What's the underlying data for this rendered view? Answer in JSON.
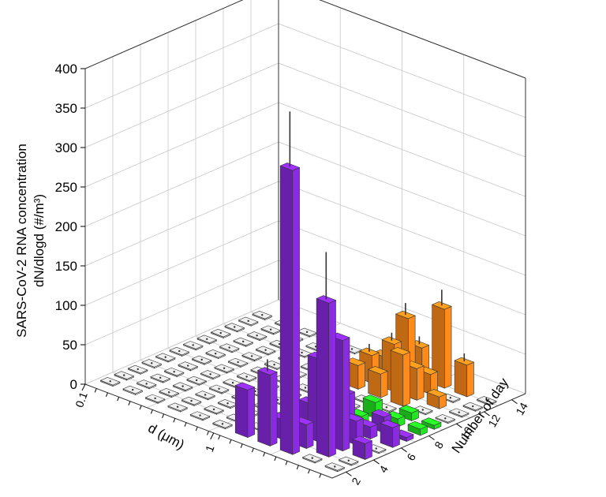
{
  "chart_data": {
    "type": "bar3d",
    "title": "",
    "z_axis": {
      "label_line1": "SARS-CoV-2 RNA concentration",
      "label_line2": "dN/dlogd (#/m³)",
      "range": [
        0,
        400
      ],
      "ticks": [
        "0",
        "50",
        "100",
        "150",
        "200",
        "250",
        "300",
        "350",
        "400"
      ]
    },
    "d_axis": {
      "label": "d (μm)",
      "tick_labels": [
        "0.1",
        "1"
      ],
      "scale": "log"
    },
    "day_axis": {
      "label": "Number of day",
      "ticks": [
        "2",
        "4",
        "6",
        "8",
        "10",
        "12",
        "14"
      ]
    },
    "colors": {
      "purple": "#8a2be2",
      "green": "#22e622",
      "orange": "#ff8c1a",
      "gray": "#d8d8d8"
    },
    "bars": [
      {
        "day": 2,
        "d_bin": 0,
        "value": 0,
        "color": "gray"
      },
      {
        "day": 2,
        "d_bin": 1,
        "value": 0,
        "color": "gray"
      },
      {
        "day": 2,
        "d_bin": 2,
        "value": 0,
        "color": "gray"
      },
      {
        "day": 2,
        "d_bin": 3,
        "value": 0,
        "color": "gray"
      },
      {
        "day": 2,
        "d_bin": 4,
        "value": 0,
        "color": "gray"
      },
      {
        "day": 2,
        "d_bin": 5,
        "value": 0,
        "color": "gray"
      },
      {
        "day": 2,
        "d_bin": 6,
        "value": 60,
        "err": 0,
        "color": "purple"
      },
      {
        "day": 2,
        "d_bin": 7,
        "value": 90,
        "err": 15,
        "color": "purple"
      },
      {
        "day": 2,
        "d_bin": 8,
        "value": 360,
        "err": 70,
        "color": "purple"
      },
      {
        "day": 2,
        "d_bin": 9,
        "value": 0,
        "color": "gray"
      },
      {
        "day": 2,
        "d_bin": 10,
        "value": 0,
        "color": "gray"
      },
      {
        "day": 3,
        "d_bin": 0,
        "value": 0,
        "color": "gray"
      },
      {
        "day": 3,
        "d_bin": 1,
        "value": 0,
        "color": "gray"
      },
      {
        "day": 3,
        "d_bin": 2,
        "value": 0,
        "color": "gray"
      },
      {
        "day": 3,
        "d_bin": 3,
        "value": 0,
        "color": "gray"
      },
      {
        "day": 3,
        "d_bin": 4,
        "value": 0,
        "color": "gray"
      },
      {
        "day": 3,
        "d_bin": 5,
        "value": 0,
        "color": "gray"
      },
      {
        "day": 3,
        "d_bin": 6,
        "value": 0,
        "color": "gray"
      },
      {
        "day": 3,
        "d_bin": 7,
        "value": 25,
        "color": "purple"
      },
      {
        "day": 3,
        "d_bin": 8,
        "value": 30,
        "color": "purple"
      },
      {
        "day": 3,
        "d_bin": 9,
        "value": 195,
        "err": 60,
        "color": "purple"
      },
      {
        "day": 3,
        "d_bin": 10,
        "value": 0,
        "color": "gray"
      },
      {
        "day": 4,
        "d_bin": 0,
        "value": 0,
        "color": "gray"
      },
      {
        "day": 4,
        "d_bin": 1,
        "value": 0,
        "color": "gray"
      },
      {
        "day": 4,
        "d_bin": 2,
        "value": 0,
        "color": "gray"
      },
      {
        "day": 4,
        "d_bin": 3,
        "value": 0,
        "color": "gray"
      },
      {
        "day": 4,
        "d_bin": 4,
        "value": 0,
        "color": "gray"
      },
      {
        "day": 4,
        "d_bin": 5,
        "value": 0,
        "color": "gray"
      },
      {
        "day": 4,
        "d_bin": 6,
        "value": 0,
        "color": "gray"
      },
      {
        "day": 4,
        "d_bin": 7,
        "value": 0,
        "color": "gray"
      },
      {
        "day": 4,
        "d_bin": 8,
        "value": 105,
        "err": 30,
        "color": "purple"
      },
      {
        "day": 4,
        "d_bin": 9,
        "value": 140,
        "color": "purple"
      },
      {
        "day": 4,
        "d_bin": 10,
        "value": 20,
        "color": "purple"
      },
      {
        "day": 5,
        "d_bin": 0,
        "value": 0,
        "color": "gray"
      },
      {
        "day": 5,
        "d_bin": 1,
        "value": 0,
        "color": "gray"
      },
      {
        "day": 5,
        "d_bin": 2,
        "value": 0,
        "color": "gray"
      },
      {
        "day": 5,
        "d_bin": 3,
        "value": 0,
        "color": "gray"
      },
      {
        "day": 5,
        "d_bin": 4,
        "value": 0,
        "color": "gray"
      },
      {
        "day": 5,
        "d_bin": 5,
        "value": 0,
        "color": "gray"
      },
      {
        "day": 5,
        "d_bin": 6,
        "value": 0,
        "color": "gray"
      },
      {
        "day": 5,
        "d_bin": 7,
        "value": 30,
        "color": "purple"
      },
      {
        "day": 5,
        "d_bin": 8,
        "value": 55,
        "color": "purple"
      },
      {
        "day": 5,
        "d_bin": 9,
        "value": 30,
        "color": "purple"
      },
      {
        "day": 5,
        "d_bin": 10,
        "value": 0,
        "color": "gray"
      },
      {
        "day": 6,
        "d_bin": 0,
        "value": 0,
        "color": "gray"
      },
      {
        "day": 6,
        "d_bin": 1,
        "value": 0,
        "color": "gray"
      },
      {
        "day": 6,
        "d_bin": 2,
        "value": 0,
        "color": "gray"
      },
      {
        "day": 6,
        "d_bin": 3,
        "value": 0,
        "color": "gray"
      },
      {
        "day": 6,
        "d_bin": 4,
        "value": 0,
        "color": "gray"
      },
      {
        "day": 6,
        "d_bin": 5,
        "value": 0,
        "color": "gray"
      },
      {
        "day": 6,
        "d_bin": 6,
        "value": 0,
        "color": "gray"
      },
      {
        "day": 6,
        "d_bin": 7,
        "value": 35,
        "err": 20,
        "color": "green"
      },
      {
        "day": 6,
        "d_bin": 8,
        "value": 45,
        "color": "purple"
      },
      {
        "day": 6,
        "d_bin": 9,
        "value": 15,
        "color": "purple"
      },
      {
        "day": 6,
        "d_bin": 10,
        "value": 25,
        "color": "purple"
      },
      {
        "day": 7,
        "d_bin": 0,
        "value": 0,
        "color": "gray"
      },
      {
        "day": 7,
        "d_bin": 1,
        "value": 0,
        "color": "gray"
      },
      {
        "day": 7,
        "d_bin": 2,
        "value": 0,
        "color": "gray"
      },
      {
        "day": 7,
        "d_bin": 3,
        "value": 0,
        "color": "gray"
      },
      {
        "day": 7,
        "d_bin": 4,
        "value": 0,
        "color": "gray"
      },
      {
        "day": 7,
        "d_bin": 5,
        "value": 0,
        "color": "gray"
      },
      {
        "day": 7,
        "d_bin": 6,
        "value": 0,
        "color": "gray"
      },
      {
        "day": 7,
        "d_bin": 7,
        "value": 30,
        "color": "green"
      },
      {
        "day": 7,
        "d_bin": 8,
        "value": 10,
        "color": "green"
      },
      {
        "day": 7,
        "d_bin": 9,
        "value": 20,
        "color": "purple"
      },
      {
        "day": 7,
        "d_bin": 10,
        "value": 5,
        "color": "purple"
      },
      {
        "day": 8,
        "d_bin": 0,
        "value": 0,
        "color": "gray"
      },
      {
        "day": 8,
        "d_bin": 1,
        "value": 0,
        "color": "gray"
      },
      {
        "day": 8,
        "d_bin": 2,
        "value": 0,
        "color": "gray"
      },
      {
        "day": 8,
        "d_bin": 3,
        "value": 0,
        "color": "gray"
      },
      {
        "day": 8,
        "d_bin": 4,
        "value": 0,
        "color": "gray"
      },
      {
        "day": 8,
        "d_bin": 5,
        "value": 0,
        "color": "gray"
      },
      {
        "day": 8,
        "d_bin": 6,
        "value": 0,
        "color": "gray"
      },
      {
        "day": 8,
        "d_bin": 7,
        "value": 0,
        "color": "gray"
      },
      {
        "day": 8,
        "d_bin": 8,
        "value": 20,
        "color": "green"
      },
      {
        "day": 8,
        "d_bin": 9,
        "value": 10,
        "color": "green"
      },
      {
        "day": 8,
        "d_bin": 10,
        "value": 8,
        "color": "green"
      },
      {
        "day": 9,
        "d_bin": 0,
        "value": 0,
        "color": "gray"
      },
      {
        "day": 9,
        "d_bin": 1,
        "value": 0,
        "color": "gray"
      },
      {
        "day": 9,
        "d_bin": 2,
        "value": 0,
        "color": "gray"
      },
      {
        "day": 9,
        "d_bin": 3,
        "value": 0,
        "color": "gray"
      },
      {
        "day": 9,
        "d_bin": 4,
        "value": 0,
        "color": "gray"
      },
      {
        "day": 9,
        "d_bin": 5,
        "value": 0,
        "color": "gray"
      },
      {
        "day": 9,
        "d_bin": 6,
        "value": 0,
        "color": "gray"
      },
      {
        "day": 9,
        "d_bin": 7,
        "value": 0,
        "color": "gray"
      },
      {
        "day": 9,
        "d_bin": 8,
        "value": 0,
        "color": "gray"
      },
      {
        "day": 9,
        "d_bin": 9,
        "value": 10,
        "color": "green"
      },
      {
        "day": 9,
        "d_bin": 10,
        "value": 5,
        "color": "green"
      },
      {
        "day": 10,
        "d_bin": 0,
        "value": 0,
        "color": "gray"
      },
      {
        "day": 10,
        "d_bin": 1,
        "value": 0,
        "color": "gray"
      },
      {
        "day": 10,
        "d_bin": 2,
        "value": 0,
        "color": "gray"
      },
      {
        "day": 10,
        "d_bin": 3,
        "value": 0,
        "color": "gray"
      },
      {
        "day": 10,
        "d_bin": 4,
        "value": 0,
        "color": "gray"
      },
      {
        "day": 10,
        "d_bin": 5,
        "value": 0,
        "color": "gray"
      },
      {
        "day": 10,
        "d_bin": 6,
        "value": 30,
        "color": "orange"
      },
      {
        "day": 10,
        "d_bin": 7,
        "value": 30,
        "color": "orange"
      },
      {
        "day": 10,
        "d_bin": 8,
        "value": 65,
        "color": "orange"
      },
      {
        "day": 10,
        "d_bin": 9,
        "value": 0,
        "color": "gray"
      },
      {
        "day": 10,
        "d_bin": 10,
        "value": 0,
        "color": "gray"
      },
      {
        "day": 11,
        "d_bin": 0,
        "value": 0,
        "color": "gray"
      },
      {
        "day": 11,
        "d_bin": 1,
        "value": 0,
        "color": "gray"
      },
      {
        "day": 11,
        "d_bin": 2,
        "value": 0,
        "color": "gray"
      },
      {
        "day": 11,
        "d_bin": 3,
        "value": 0,
        "color": "gray"
      },
      {
        "day": 11,
        "d_bin": 4,
        "value": 0,
        "color": "gray"
      },
      {
        "day": 11,
        "d_bin": 5,
        "value": 0,
        "color": "gray"
      },
      {
        "day": 11,
        "d_bin": 6,
        "value": 35,
        "err": 10,
        "color": "orange"
      },
      {
        "day": 11,
        "d_bin": 7,
        "value": 60,
        "err": 10,
        "color": "orange"
      },
      {
        "day": 11,
        "d_bin": 8,
        "value": 40,
        "color": "orange"
      },
      {
        "day": 11,
        "d_bin": 9,
        "value": 15,
        "color": "orange"
      },
      {
        "day": 11,
        "d_bin": 10,
        "value": 0,
        "color": "gray"
      },
      {
        "day": 12,
        "d_bin": 0,
        "value": 0,
        "color": "gray"
      },
      {
        "day": 12,
        "d_bin": 1,
        "value": 0,
        "color": "gray"
      },
      {
        "day": 12,
        "d_bin": 2,
        "value": 0,
        "color": "gray"
      },
      {
        "day": 12,
        "d_bin": 3,
        "value": 0,
        "color": "gray"
      },
      {
        "day": 12,
        "d_bin": 4,
        "value": 0,
        "color": "gray"
      },
      {
        "day": 12,
        "d_bin": 5,
        "value": 0,
        "color": "gray"
      },
      {
        "day": 12,
        "d_bin": 6,
        "value": 25,
        "color": "orange"
      },
      {
        "day": 12,
        "d_bin": 7,
        "value": 85,
        "err": 15,
        "color": "orange"
      },
      {
        "day": 12,
        "d_bin": 8,
        "value": 25,
        "color": "orange"
      },
      {
        "day": 12,
        "d_bin": 9,
        "value": 0,
        "color": "gray"
      },
      {
        "day": 12,
        "d_bin": 10,
        "value": 0,
        "color": "gray"
      },
      {
        "day": 13,
        "d_bin": 0,
        "value": 0,
        "color": "gray"
      },
      {
        "day": 13,
        "d_bin": 1,
        "value": 0,
        "color": "gray"
      },
      {
        "day": 13,
        "d_bin": 2,
        "value": 0,
        "color": "gray"
      },
      {
        "day": 13,
        "d_bin": 3,
        "value": 0,
        "color": "gray"
      },
      {
        "day": 13,
        "d_bin": 4,
        "value": 0,
        "color": "gray"
      },
      {
        "day": 13,
        "d_bin": 5,
        "value": 0,
        "color": "gray"
      },
      {
        "day": 13,
        "d_bin": 6,
        "value": 0,
        "color": "gray"
      },
      {
        "day": 13,
        "d_bin": 7,
        "value": 40,
        "err": 10,
        "color": "orange"
      },
      {
        "day": 13,
        "d_bin": 8,
        "value": 100,
        "err": 20,
        "color": "orange"
      },
      {
        "day": 13,
        "d_bin": 9,
        "value": 40,
        "err": 10,
        "color": "orange"
      },
      {
        "day": 13,
        "d_bin": 10,
        "value": 0,
        "color": "gray"
      }
    ]
  }
}
